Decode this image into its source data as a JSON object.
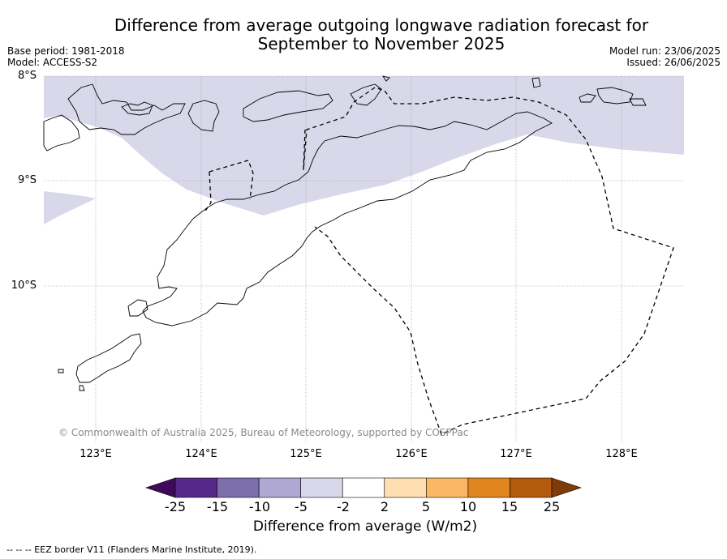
{
  "title_line1": "Difference from average outgoing longwave radiation forecast for",
  "title_line2": "September to November 2025",
  "meta_left": [
    "Base period: 1981-2018",
    "Model: ACCESS-S2"
  ],
  "meta_right": [
    "Model run: 23/06/2025",
    "Issued: 26/06/2025"
  ],
  "latitude_labels": [
    "8°S",
    "9°S",
    "10°S"
  ],
  "longitude_labels": [
    "123°E",
    "124°E",
    "125°E",
    "126°E",
    "127°E",
    "128°E"
  ],
  "copyright": "© Commonwealth of Australia 2025, Bureau of Meteorology, supported by COSPPac",
  "colorbar": {
    "label": "Difference from average (W/m2)",
    "ticks": [
      "-25",
      "-15",
      "-10",
      "-5",
      "-2",
      "2",
      "5",
      "10",
      "15",
      "25"
    ],
    "colors": [
      "#3f0a5c",
      "#55298a",
      "#7c6fac",
      "#aea8d2",
      "#d8d8ea",
      "#ffffff",
      "#fddfb2",
      "#fbb766",
      "#e0851f",
      "#b45a0c",
      "#7f3b08"
    ]
  },
  "shaded_anomaly_color": "#d8d8ea",
  "footnote": "-- -- -- EEZ border V11 (Flanders Marine Institute, 2019)."
}
